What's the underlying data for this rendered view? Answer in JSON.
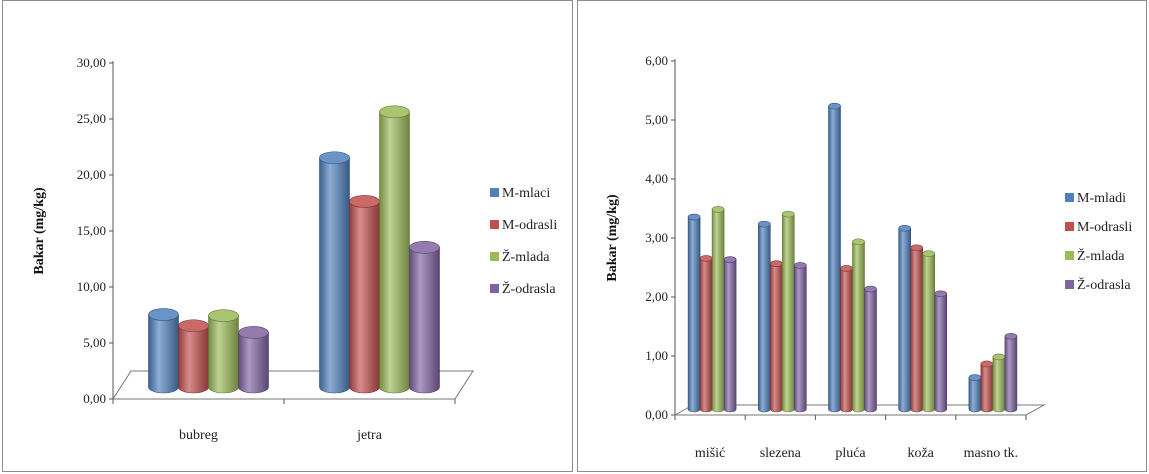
{
  "chart_data": [
    {
      "type": "bar",
      "ylabel": "Bakar (mg/kg)",
      "ylim": [
        0,
        30
      ],
      "yticks": [
        "0,00",
        "5,00",
        "10,00",
        "15,00",
        "20,00",
        "25,00",
        "30,00"
      ],
      "categories": [
        "bubreg",
        "jetra"
      ],
      "legend_position": "right",
      "series": [
        {
          "name": "M-mlaci",
          "color": "#4F81BD",
          "values": [
            7.7,
            21.7
          ]
        },
        {
          "name": "M-odrasli",
          "color": "#C0504D",
          "values": [
            6.7,
            17.8
          ]
        },
        {
          "name": "Ž-mlada",
          "color": "#9BBB59",
          "values": [
            7.6,
            25.8
          ]
        },
        {
          "name": "Ž-odrasla",
          "color": "#8064A2",
          "values": [
            6.1,
            13.7
          ]
        }
      ]
    },
    {
      "type": "bar",
      "ylabel": "Bakar (mg/kg)",
      "ylim": [
        0,
        6
      ],
      "yticks": [
        "0,00",
        "1,00",
        "2,00",
        "3,00",
        "4,00",
        "5,00",
        "6,00"
      ],
      "categories": [
        "mišić",
        "slezena",
        "pluća",
        "koža",
        "masno tk."
      ],
      "legend_position": "right",
      "series": [
        {
          "name": "M-mladi",
          "color": "#4F81BD",
          "values": [
            3.37,
            3.25,
            5.25,
            3.18,
            0.65
          ]
        },
        {
          "name": "M-odrasli",
          "color": "#C0504D",
          "values": [
            2.67,
            2.58,
            2.5,
            2.85,
            0.88
          ]
        },
        {
          "name": "Ž-mlada",
          "color": "#9BBB59",
          "values": [
            3.5,
            3.42,
            2.95,
            2.75,
            1.0
          ]
        },
        {
          "name": "Ž-odrasla",
          "color": "#8064A2",
          "values": [
            2.65,
            2.55,
            2.15,
            2.07,
            1.35
          ]
        }
      ]
    }
  ]
}
